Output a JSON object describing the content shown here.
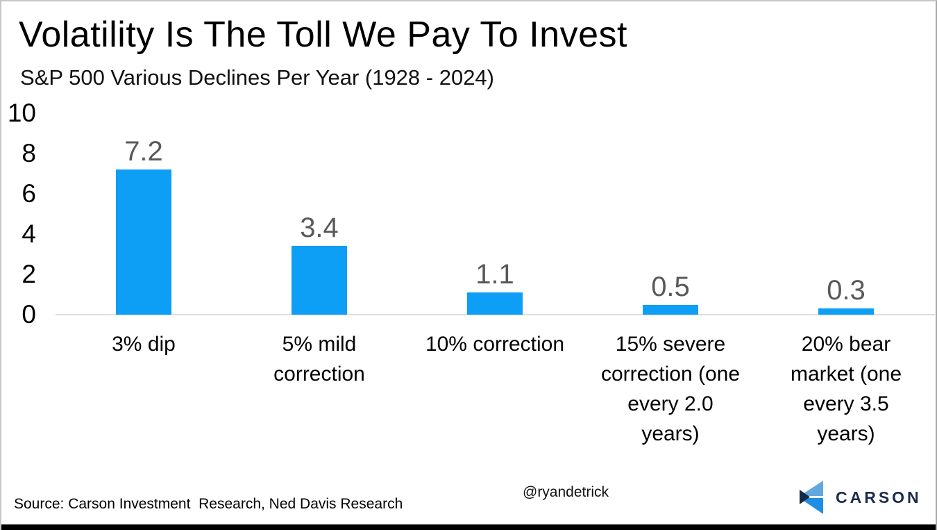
{
  "page": {
    "title": "Volatility Is The Toll We Pay To Invest",
    "subtitle": "S&P 500 Various Declines Per Year (1928 - 2024)",
    "source": "Source: Carson Investment  Research, Ned Davis Research",
    "handle": "@ryandetrick",
    "brand": "CARSON"
  },
  "chart_data": {
    "type": "bar",
    "title": "Volatility Is The Toll We Pay To Invest",
    "subtitle": "S&P 500 Various Declines Per Year (1928 - 2024)",
    "categories": [
      "3% dip",
      "5% mild correction",
      "10% correction",
      "15% severe correction (one every 2.0 years)",
      "20% bear market (one every 3.5 years)"
    ],
    "categories_wrapped": [
      "3% dip",
      "5% mild\ncorrection",
      "10% correction",
      "15% severe\ncorrection (one\nevery 2.0\nyears)",
      "20% bear\nmarket (one\nevery 3.5\nyears)"
    ],
    "values": [
      7.2,
      3.4,
      1.1,
      0.5,
      0.3
    ],
    "value_labels": [
      "7.2",
      "3.4",
      "1.1",
      "0.5",
      "0.3"
    ],
    "xlabel": "",
    "ylabel": "",
    "ylim": [
      0,
      10
    ],
    "yticks": [
      10,
      8,
      6,
      4,
      2,
      0
    ],
    "gridlines": false,
    "legend_position": "none",
    "bar_color": "#0d9ef5",
    "data_label_color": "#595959"
  },
  "colors": {
    "bar": "#0d9ef5",
    "data_label": "#595959",
    "baseline": "#dcdcdc",
    "brand_navy": "#1b2b4c",
    "logo_light": "#63a8dc",
    "logo_mid": "#1e8fe5",
    "logo_dark": "#152a47"
  }
}
